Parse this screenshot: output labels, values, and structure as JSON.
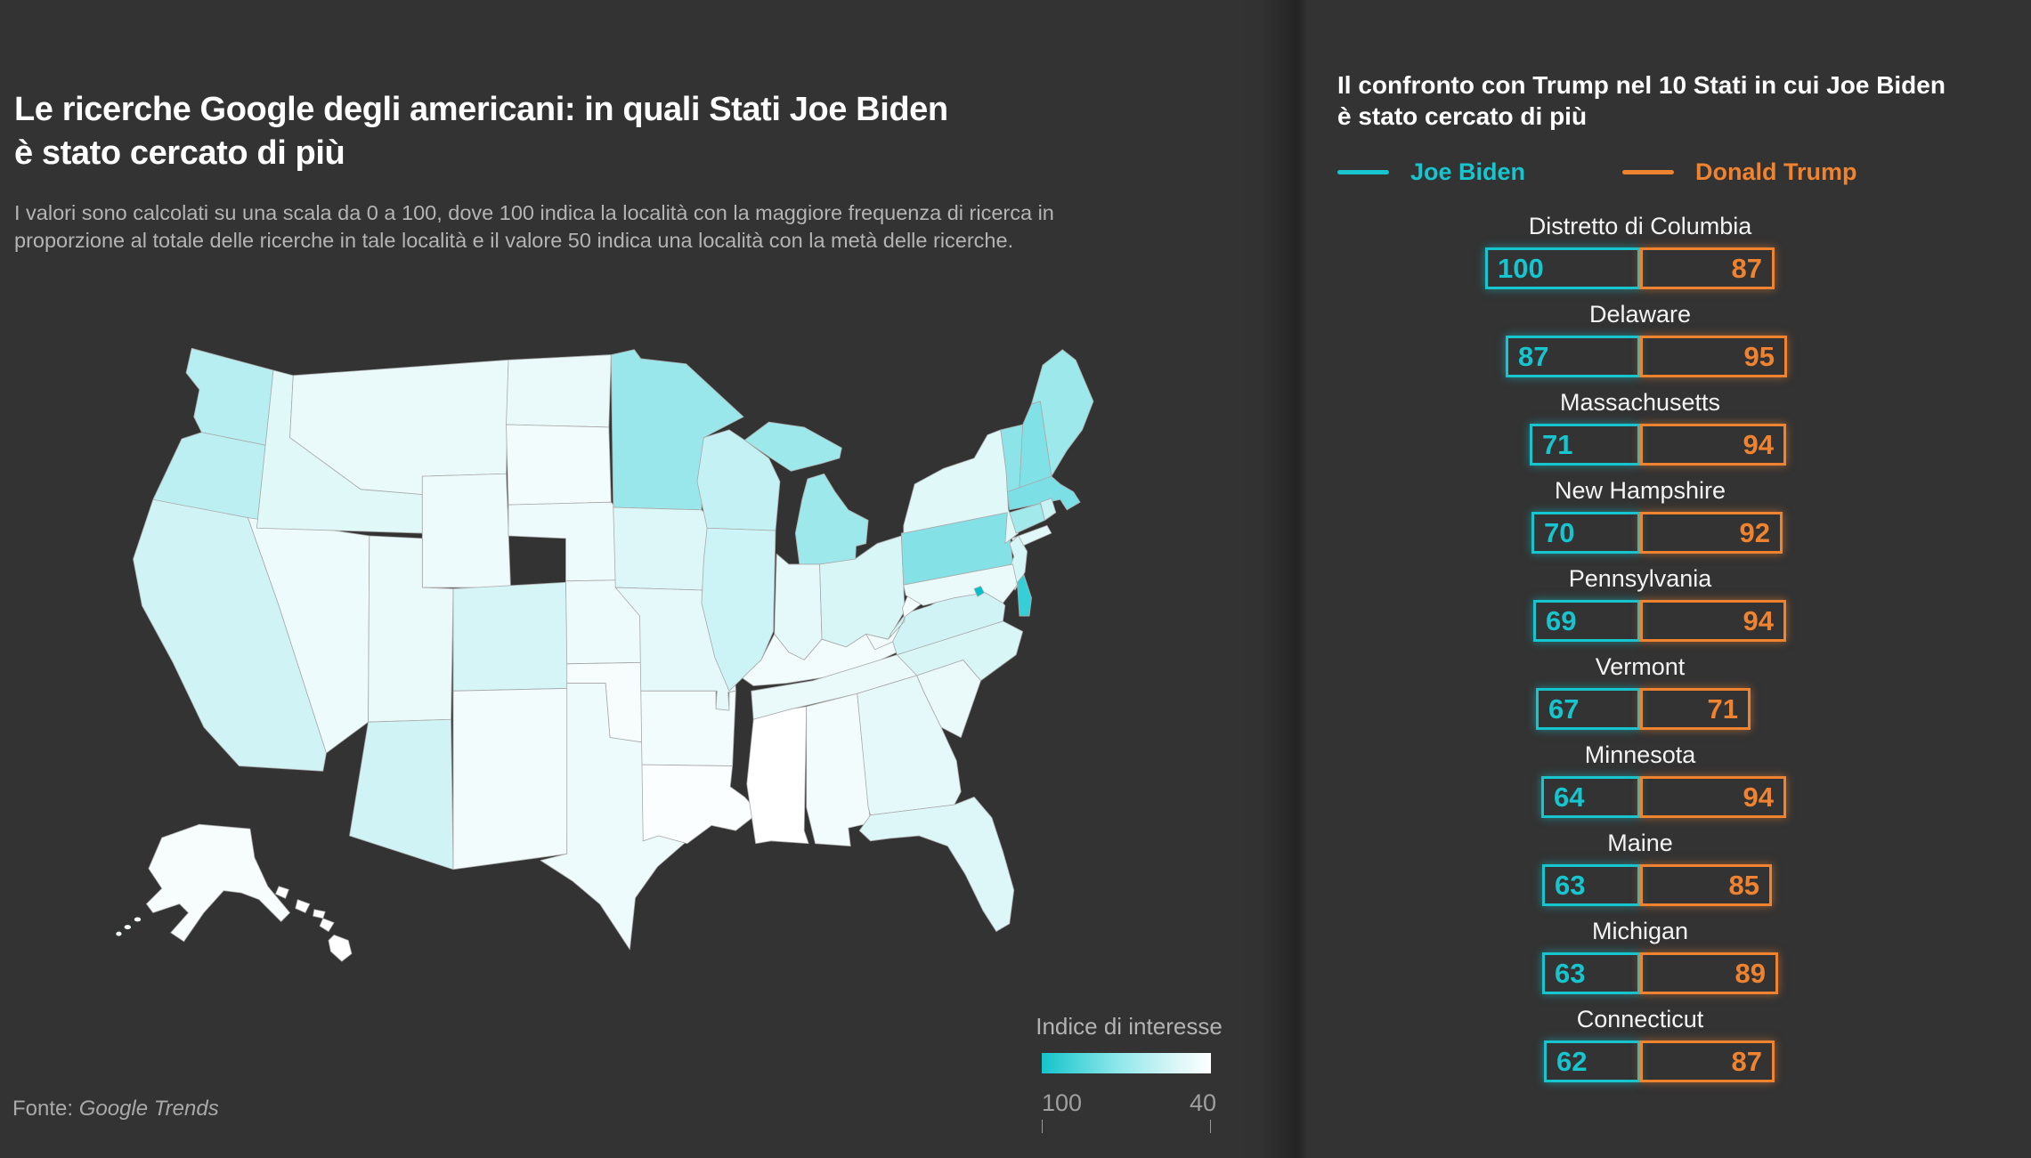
{
  "header": {
    "title_line1": "Le ricerche Google degli americani: in quali Stati Joe Biden",
    "title_line2": "è stato cercato di più",
    "subtitle": "I valori sono calcolati su una scala da 0 a 100, dove 100 indica la località con la maggiore frequenza di ricerca in proporzione al totale delle ricerche in tale località e il valore 50 indica una località con la metà delle ricerche."
  },
  "source": {
    "prefix": "Fonte: ",
    "name": "Google Trends"
  },
  "map_legend": {
    "title": "Indice di interesse",
    "max_label": "100",
    "min_label": "40"
  },
  "panel": {
    "title_line1": "Il confronto con Trump nel 10 Stati in cui Joe Biden",
    "title_line2": "è stato cercato di più",
    "legend": [
      {
        "label": "Joe Biden",
        "color": "#17c5cf"
      },
      {
        "label": "Donald Trump",
        "color": "#ef8330"
      }
    ]
  },
  "colors": {
    "background": "#333333",
    "biden": "#17c5cf",
    "trump": "#ef8330",
    "map_high": "#00c2cc",
    "map_low": "#ffffff"
  },
  "chart_data": [
    {
      "type": "bar",
      "title": "Il confronto con Trump nel 10 Stati in cui Joe Biden è stato cercato di più",
      "orientation": "horizontal-diverging",
      "categories": [
        "Distretto di Columbia",
        "Delaware",
        "Massachusetts",
        "New Hampshire",
        "Pennsylvania",
        "Vermont",
        "Minnesota",
        "Maine",
        "Michigan",
        "Connecticut"
      ],
      "series": [
        {
          "name": "Joe Biden",
          "color": "#17c5cf",
          "values": [
            100,
            87,
            71,
            70,
            69,
            67,
            64,
            63,
            63,
            62
          ]
        },
        {
          "name": "Donald Trump",
          "color": "#ef8330",
          "values": [
            87,
            95,
            94,
            92,
            94,
            71,
            94,
            85,
            89,
            87
          ]
        }
      ],
      "xlim": [
        0,
        100
      ],
      "legend_position": "top"
    },
    {
      "type": "heatmap",
      "subtype": "choropleth-usa",
      "title": "Indice di interesse (ricerche di Joe Biden per Stato)",
      "scale": {
        "min": 40,
        "max": 100,
        "color_min": "#ffffff",
        "color_max": "#00c2cc"
      },
      "states": {
        "WA": 57,
        "OR": 56,
        "CA": 51,
        "NV": 44,
        "ID": 47,
        "MT": 45,
        "WY": 44,
        "UT": 45,
        "CO": 50,
        "AZ": 51,
        "NM": 43,
        "ND": 45,
        "SD": 43,
        "NE": 44,
        "KS": 44,
        "OK": 42,
        "TX": 44,
        "MN": 64,
        "IA": 48,
        "MO": 46,
        "AR": 43,
        "LA": 41,
        "WI": 54,
        "IL": 52,
        "MI": 63,
        "IN": 46,
        "OH": 49,
        "KY": 43,
        "TN": 45,
        "MS": 40,
        "AL": 43,
        "GA": 46,
        "FL": 48,
        "SC": 45,
        "NC": 49,
        "VA": 51,
        "WV": 43,
        "PA": 69,
        "NY": 47,
        "NJ": 50,
        "DE": 87,
        "MD": 45,
        "DC": 100,
        "ME": 63,
        "VT": 67,
        "NH": 70,
        "MA": 71,
        "CT": 62,
        "RI": 53,
        "AK": 42,
        "HI": 40
      }
    }
  ]
}
